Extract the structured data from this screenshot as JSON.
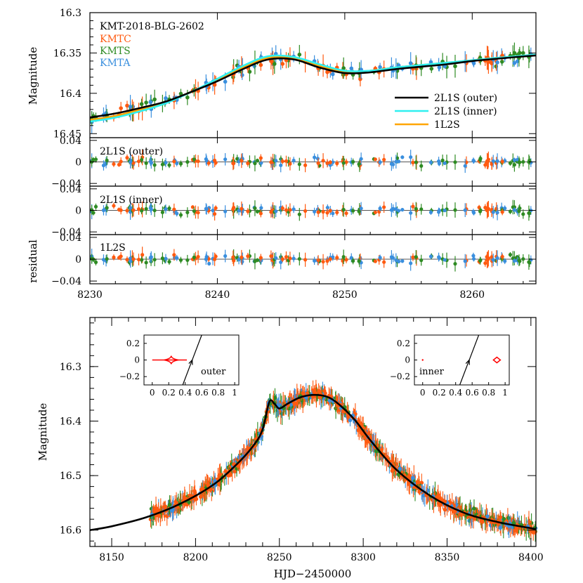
{
  "colors": {
    "kmtc": "#ff5a10",
    "kmts": "#2e8b23",
    "kmta": "#3a8fde",
    "outer": "#000000",
    "inner": "#2ff0f0",
    "onel2s": "#ffa500",
    "caustic": "#ff0000"
  },
  "chart_data": [
    {
      "type": "scatter",
      "panel": "zoom-lightcurve",
      "title": "",
      "event_label": "KMT-2018-BLG-2602",
      "ylabel": "Magnitude",
      "xlim": [
        8230,
        8265
      ],
      "ylim": [
        16.455,
        16.3
      ],
      "yticks": [
        "16.3",
        "16.35",
        "16.4",
        "16.45"
      ],
      "ytick_values": [
        16.3,
        16.35,
        16.4,
        16.45
      ],
      "datasets": [
        "KMTC",
        "KMTS",
        "KMTA"
      ],
      "models": [
        {
          "name": "2L1S (outer)",
          "x": [
            8230,
            8232,
            8234,
            8236,
            8238,
            8240,
            8242,
            8244,
            8246,
            8248,
            8250,
            8252,
            8254,
            8256,
            8258,
            8260,
            8262,
            8265
          ],
          "y": [
            16.43,
            16.425,
            16.418,
            16.41,
            16.398,
            16.385,
            16.37,
            16.358,
            16.358,
            16.368,
            16.375,
            16.374,
            16.37,
            16.367,
            16.364,
            16.36,
            16.357,
            16.353
          ]
        },
        {
          "name": "2L1S (inner)",
          "x": [
            8230,
            8232,
            8234,
            8236,
            8238,
            8240,
            8242,
            8244,
            8246,
            8248,
            8250,
            8252,
            8254,
            8256,
            8258,
            8260,
            8262,
            8265
          ],
          "y": [
            16.435,
            16.43,
            16.422,
            16.412,
            16.398,
            16.382,
            16.366,
            16.354,
            16.355,
            16.364,
            16.372,
            16.372,
            16.368,
            16.365,
            16.362,
            16.359,
            16.356,
            16.352
          ]
        },
        {
          "name": "1L2S",
          "x": [
            8230,
            8232,
            8234,
            8236,
            8238,
            8240,
            8242,
            8244,
            8246,
            8248,
            8250,
            8252,
            8254,
            8256,
            8258,
            8260,
            8262,
            8265
          ],
          "y": [
            16.433,
            16.428,
            16.42,
            16.411,
            16.398,
            16.383,
            16.368,
            16.356,
            16.356,
            16.366,
            16.373,
            16.372,
            16.368,
            16.365,
            16.362,
            16.359,
            16.356,
            16.352
          ]
        }
      ],
      "legend": [
        "2L1S (outer)",
        "2L1S (inner)",
        "1L2S"
      ],
      "legend_position": "lower-right"
    },
    {
      "type": "scatter",
      "panel": "residuals",
      "ylabel": "residual",
      "xlim": [
        8230,
        8265
      ],
      "ylim": [
        -0.045,
        0.045
      ],
      "yticks": [
        "0.04",
        "0",
        "−0.04"
      ],
      "ytick_values": [
        0.04,
        0,
        -0.04
      ],
      "xticks": [
        "8230",
        "8240",
        "8250",
        "8260"
      ],
      "xtick_values": [
        8230,
        8240,
        8250,
        8260
      ],
      "panels": [
        "2L1S (outer)",
        "2L1S (inner)",
        "1L2S"
      ]
    },
    {
      "type": "scatter",
      "panel": "full-lightcurve",
      "ylabel": "Magnitude",
      "xlabel": "HJD−2450000",
      "xlim": [
        8137,
        8403
      ],
      "ylim": [
        16.63,
        16.21
      ],
      "xticks": [
        "8150",
        "8200",
        "8250",
        "8300",
        "8350",
        "8400"
      ],
      "xtick_values": [
        8150,
        8200,
        8250,
        8300,
        8350,
        8400
      ],
      "yticks": [
        "16.3",
        "16.4",
        "16.5",
        "16.6"
      ],
      "ytick_values": [
        16.3,
        16.4,
        16.5,
        16.6
      ],
      "model": {
        "x": [
          8137,
          8150,
          8170,
          8190,
          8210,
          8225,
          8235,
          8240,
          8244,
          8247,
          8250,
          8255,
          8262,
          8270,
          8278,
          8285,
          8295,
          8305,
          8320,
          8340,
          8360,
          8380,
          8403
        ],
        "y": [
          16.6,
          16.593,
          16.577,
          16.553,
          16.518,
          16.478,
          16.443,
          16.415,
          16.365,
          16.368,
          16.377,
          16.368,
          16.357,
          16.352,
          16.355,
          16.368,
          16.398,
          16.438,
          16.49,
          16.537,
          16.568,
          16.585,
          16.598
        ]
      },
      "insets": [
        {
          "label": "outer",
          "xlim": [
            -0.1,
            1.05
          ],
          "ylim": [
            -0.3,
            0.3
          ],
          "xticks": [
            "0",
            "0.2",
            "0.4",
            "0.6",
            "0.8",
            "1"
          ],
          "xtick_values": [
            0,
            0.2,
            0.4,
            0.6,
            0.8,
            1
          ],
          "yticks": [
            "0.2",
            "0",
            "−0.2"
          ],
          "ytick_values": [
            0.2,
            0,
            -0.2
          ],
          "trajectory": [
            [
              0.37,
              -0.32
            ],
            [
              0.6,
              0.3
            ]
          ],
          "caustic_center": 0.23
        },
        {
          "label": "inner",
          "xlim": [
            -0.1,
            1.05
          ],
          "ylim": [
            -0.3,
            0.3
          ],
          "xticks": [
            "0",
            "0.2",
            "0.4",
            "0.6",
            "0.8",
            "1"
          ],
          "xtick_values": [
            0,
            0.2,
            0.4,
            0.6,
            0.8,
            1
          ],
          "yticks": [
            "0.2",
            "0",
            "−0.2"
          ],
          "ytick_values": [
            0.2,
            0,
            -0.2
          ],
          "trajectory": [
            [
              0.45,
              -0.32
            ],
            [
              0.68,
              0.3
            ]
          ],
          "caustic_center": 0.9
        }
      ]
    }
  ]
}
